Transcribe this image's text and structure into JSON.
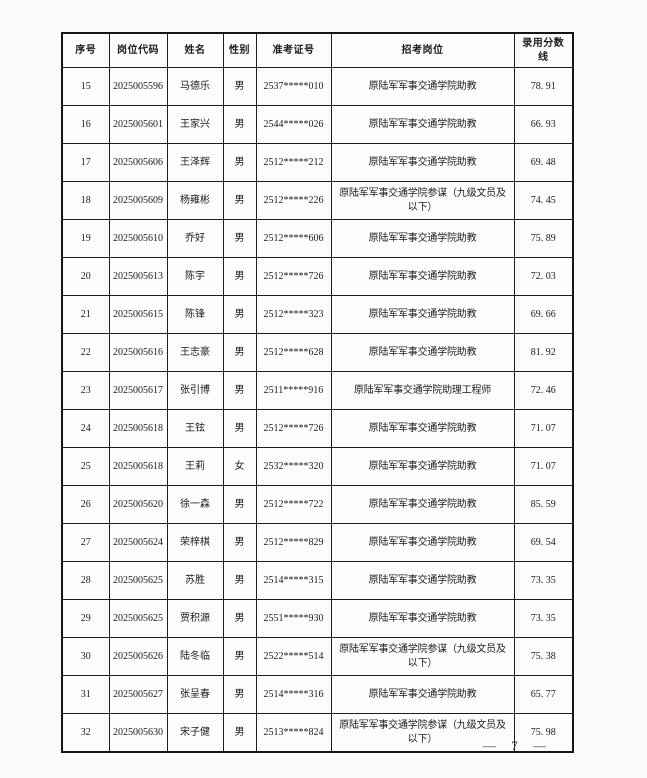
{
  "table": {
    "headers": [
      "序号",
      "岗位代码",
      "姓名",
      "性别",
      "准考证号",
      "招考岗位",
      "录用分数线"
    ],
    "rows": [
      [
        "15",
        "2025005596",
        "马德乐",
        "男",
        "2537*****010",
        "原陆军军事交通学院助教",
        "78. 91"
      ],
      [
        "16",
        "2025005601",
        "王家兴",
        "男",
        "2544*****026",
        "原陆军军事交通学院助教",
        "66. 93"
      ],
      [
        "17",
        "2025005606",
        "王泽辉",
        "男",
        "2512*****212",
        "原陆军军事交通学院助教",
        "69. 48"
      ],
      [
        "18",
        "2025005609",
        "杨雍彬",
        "男",
        "2512*****226",
        "原陆军军事交通学院参谋（九级文员及以下）",
        "74. 45"
      ],
      [
        "19",
        "2025005610",
        "乔好",
        "男",
        "2512*****606",
        "原陆军军事交通学院助教",
        "75. 89"
      ],
      [
        "20",
        "2025005613",
        "陈宇",
        "男",
        "2512*****726",
        "原陆军军事交通学院助教",
        "72. 03"
      ],
      [
        "21",
        "2025005615",
        "陈锋",
        "男",
        "2512*****323",
        "原陆军军事交通学院助教",
        "69. 66"
      ],
      [
        "22",
        "2025005616",
        "王志豪",
        "男",
        "2512*****628",
        "原陆军军事交通学院助教",
        "81. 92"
      ],
      [
        "23",
        "2025005617",
        "张引博",
        "男",
        "2511*****916",
        "原陆军军事交通学院助理工程师",
        "72. 46"
      ],
      [
        "24",
        "2025005618",
        "王铉",
        "男",
        "2512*****726",
        "原陆军军事交通学院助教",
        "71. 07"
      ],
      [
        "25",
        "2025005618",
        "王莉",
        "女",
        "2532*****320",
        "原陆军军事交通学院助教",
        "71. 07"
      ],
      [
        "26",
        "2025005620",
        "徐一森",
        "男",
        "2512*****722",
        "原陆军军事交通学院助教",
        "85. 59"
      ],
      [
        "27",
        "2025005624",
        "荣梓棋",
        "男",
        "2512*****829",
        "原陆军军事交通学院助教",
        "69. 54"
      ],
      [
        "28",
        "2025005625",
        "苏胜",
        "男",
        "2514*****315",
        "原陆军军事交通学院助教",
        "73. 35"
      ],
      [
        "29",
        "2025005625",
        "贾积源",
        "男",
        "2551*****930",
        "原陆军军事交通学院助教",
        "73. 35"
      ],
      [
        "30",
        "2025005626",
        "陆冬临",
        "男",
        "2522*****514",
        "原陆军军事交通学院参谋（九级文员及以下）",
        "75. 38"
      ],
      [
        "31",
        "2025005627",
        "张呈春",
        "男",
        "2514*****316",
        "原陆军军事交通学院助教",
        "65. 77"
      ],
      [
        "32",
        "2025005630",
        "宋子健",
        "男",
        "2513*****824",
        "原陆军军事交通学院参谋（九级文员及以下）",
        "75. 98"
      ]
    ]
  },
  "footer": {
    "page_display": "— 7 —",
    "page_number": "7"
  }
}
